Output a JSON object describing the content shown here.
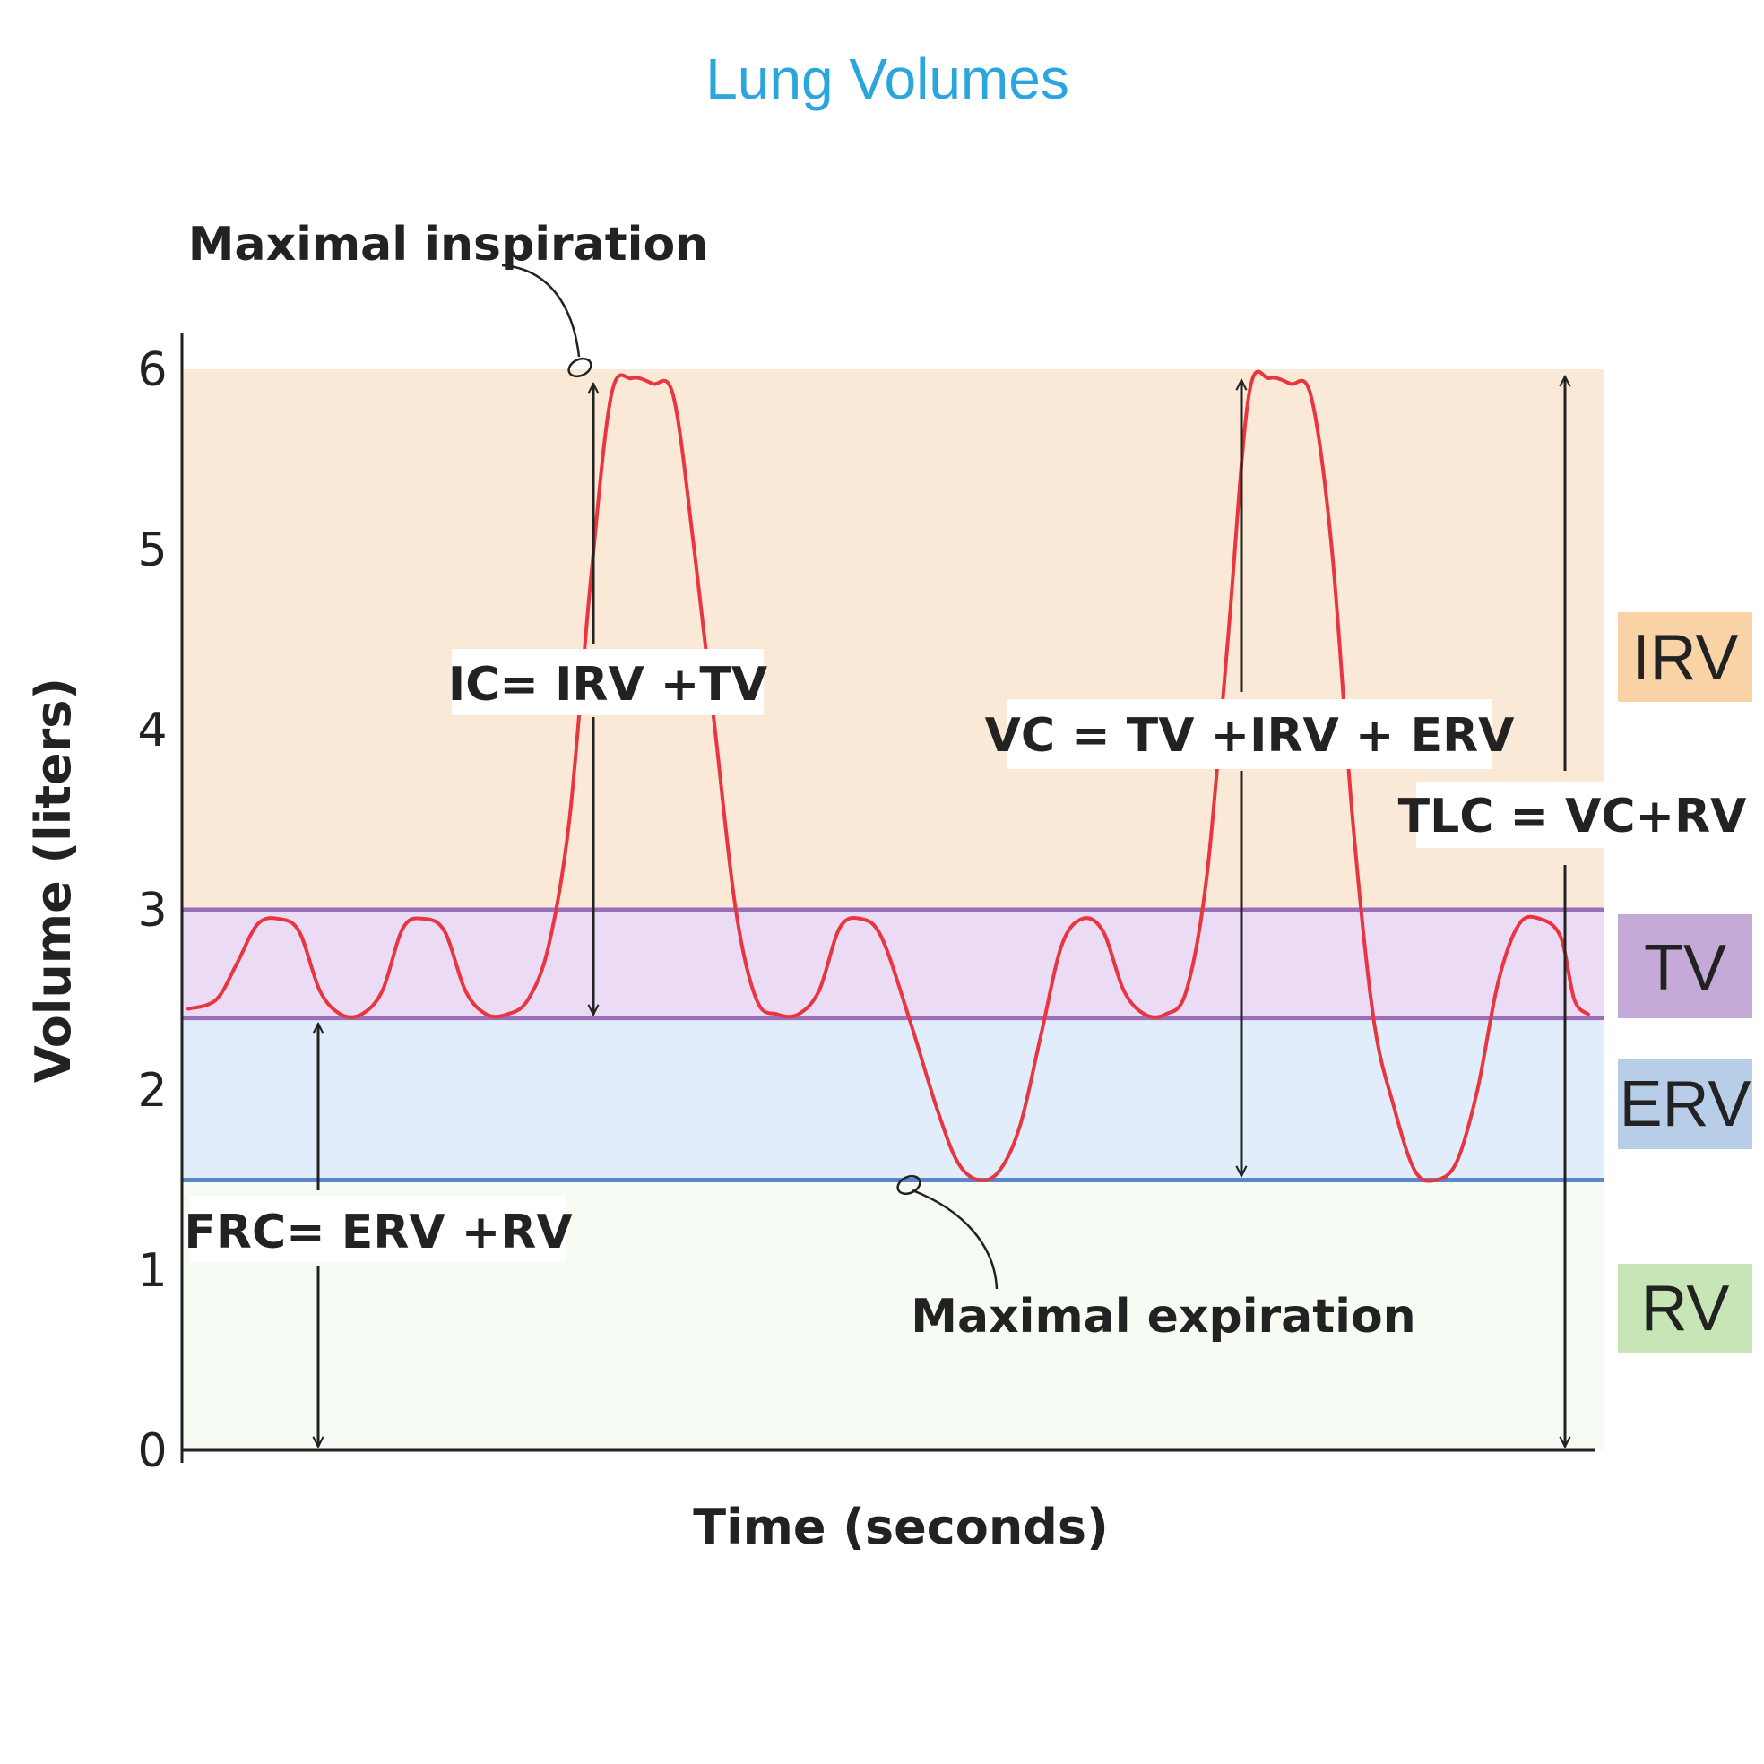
{
  "chart_data": {
    "type": "line",
    "title": "Lung Volumes",
    "xlabel": "Time (seconds)",
    "ylabel": "Volume (liters)",
    "ylim": [
      0,
      6
    ],
    "y_ticks": [
      "0",
      "1",
      "2",
      "3",
      "4",
      "5",
      "6"
    ],
    "grid": false,
    "series": [
      {
        "color": "#e8353f",
        "points": [
          [
            0.0,
            2.45
          ],
          [
            0.2,
            2.5
          ],
          [
            0.35,
            2.7
          ],
          [
            0.5,
            2.92
          ],
          [
            0.65,
            2.95
          ],
          [
            0.8,
            2.88
          ],
          [
            0.95,
            2.55
          ],
          [
            1.1,
            2.42
          ],
          [
            1.25,
            2.42
          ],
          [
            1.4,
            2.55
          ],
          [
            1.55,
            2.9
          ],
          [
            1.7,
            2.95
          ],
          [
            1.85,
            2.88
          ],
          [
            2.0,
            2.55
          ],
          [
            2.15,
            2.42
          ],
          [
            2.3,
            2.42
          ],
          [
            2.45,
            2.5
          ],
          [
            2.6,
            2.8
          ],
          [
            2.75,
            3.5
          ],
          [
            2.9,
            4.8
          ],
          [
            3.05,
            5.85
          ],
          [
            3.2,
            5.95
          ],
          [
            3.35,
            5.92
          ],
          [
            3.5,
            5.85
          ],
          [
            3.65,
            5.0
          ],
          [
            3.8,
            4.0
          ],
          [
            3.95,
            3.0
          ],
          [
            4.1,
            2.5
          ],
          [
            4.25,
            2.42
          ],
          [
            4.4,
            2.42
          ],
          [
            4.55,
            2.55
          ],
          [
            4.7,
            2.9
          ],
          [
            4.85,
            2.95
          ],
          [
            5.0,
            2.85
          ],
          [
            5.2,
            2.4
          ],
          [
            5.4,
            1.9
          ],
          [
            5.55,
            1.6
          ],
          [
            5.7,
            1.5
          ],
          [
            5.85,
            1.55
          ],
          [
            6.0,
            1.8
          ],
          [
            6.15,
            2.3
          ],
          [
            6.3,
            2.8
          ],
          [
            6.45,
            2.95
          ],
          [
            6.6,
            2.88
          ],
          [
            6.75,
            2.55
          ],
          [
            6.9,
            2.42
          ],
          [
            7.05,
            2.42
          ],
          [
            7.2,
            2.55
          ],
          [
            7.35,
            3.2
          ],
          [
            7.5,
            4.5
          ],
          [
            7.65,
            5.85
          ],
          [
            7.8,
            5.95
          ],
          [
            7.95,
            5.92
          ],
          [
            8.1,
            5.85
          ],
          [
            8.25,
            5.0
          ],
          [
            8.4,
            3.5
          ],
          [
            8.55,
            2.4
          ],
          [
            8.7,
            1.9
          ],
          [
            8.85,
            1.55
          ],
          [
            9.0,
            1.5
          ],
          [
            9.15,
            1.6
          ],
          [
            9.3,
            2.0
          ],
          [
            9.45,
            2.6
          ],
          [
            9.6,
            2.92
          ],
          [
            9.75,
            2.95
          ],
          [
            9.9,
            2.85
          ],
          [
            10.0,
            2.5
          ],
          [
            10.1,
            2.42
          ]
        ]
      }
    ],
    "regions": [
      {
        "label": "IRV",
        "from": 3.0,
        "to": 6.0,
        "color": "#fae9d7",
        "label_color": "#f9d3a6"
      },
      {
        "label": "TV",
        "from": 2.4,
        "to": 3.0,
        "color": "#ecdbf5",
        "label_color": "#c5a9d9"
      },
      {
        "label": "ERV",
        "from": 1.5,
        "to": 2.4,
        "color": "#e1edfa",
        "label_color": "#b8cde8"
      },
      {
        "label": "RV",
        "from": 0.0,
        "to": 1.5,
        "color": "#f6fbf4",
        "label_color": "#c7e5b5"
      }
    ],
    "formulas": [
      "IC= IRV +TV",
      "VC = TV +IRV + ERV",
      "TLC = VC+RV",
      "FRC= ERV +RV"
    ],
    "annotations": [
      "Maximal inspiration",
      "Maximal expiration"
    ]
  }
}
